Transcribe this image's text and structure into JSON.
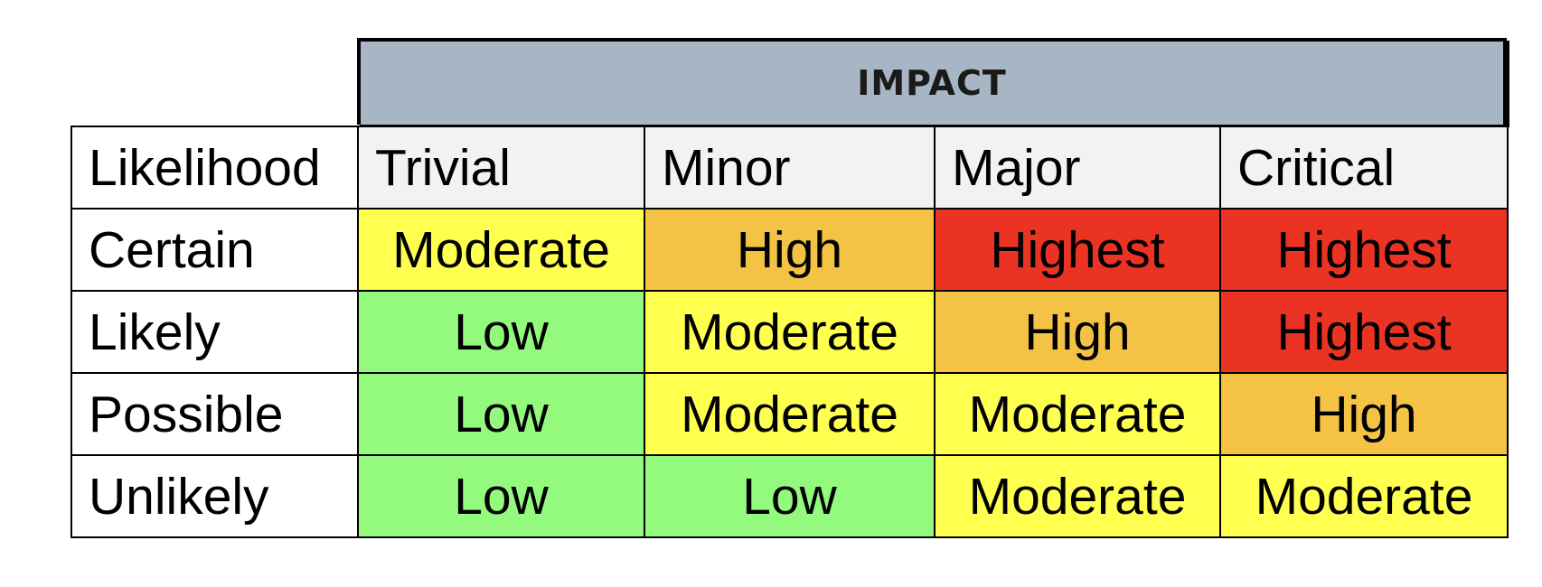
{
  "impact_title": "IMPACT",
  "corner_label": "Likelihood",
  "impact_levels": [
    "Trivial",
    "Minor",
    "Major",
    "Critical"
  ],
  "likelihood_levels": [
    "Certain",
    "Likely",
    "Possible",
    "Unlikely"
  ],
  "matrix": [
    [
      "Moderate",
      "High",
      "Highest",
      "Highest"
    ],
    [
      "Low",
      "Moderate",
      "High",
      "Highest"
    ],
    [
      "Low",
      "Moderate",
      "Moderate",
      "High"
    ],
    [
      "Low",
      "Low",
      "Moderate",
      "Moderate"
    ]
  ],
  "colors": {
    "header_band": "#a8b5c5",
    "column_header_bg": "#f2f2f2",
    "Low": "#93fa7d",
    "Moderate": "#ffff50",
    "High": "#f4c244",
    "Highest": "#eb3323"
  }
}
